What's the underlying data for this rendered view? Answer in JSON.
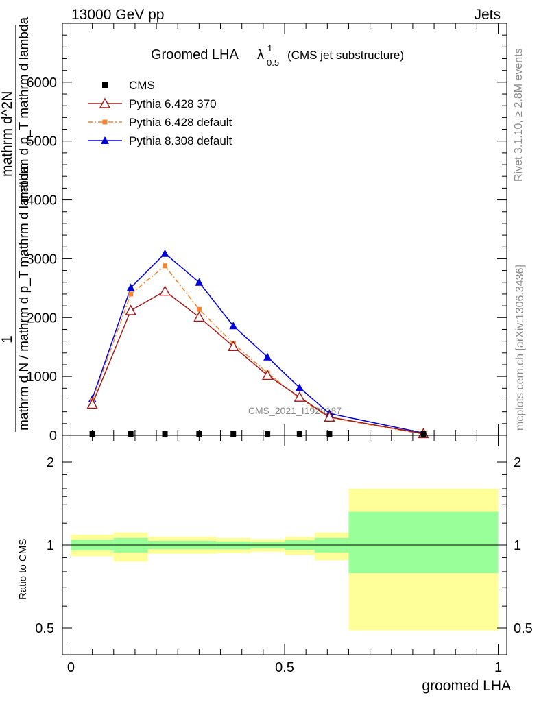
{
  "header": {
    "left": "13000 GeV pp",
    "right": "Jets"
  },
  "side_labels": {
    "rivet": "Rivet 3.1.10, ≥ 2.8M events",
    "site": "mcplots.cern.ch [arXiv:1306.3436]"
  },
  "watermark": "CMS_2021_I1920187",
  "title": {
    "main": "Groomed LHA",
    "lambda": "λ",
    "sup": "1",
    "sub": "0.5",
    "note": "(CMS jet substructure)"
  },
  "y_label_lines": [
    "1",
    "mathrm d N / mathrm d p_T mathrm d lambda",
    "mathrm d^2N",
    "mathrm d p_T mathrm d lambda"
  ],
  "ratio_ylabel": "Ratio to CMS",
  "x_label": "groomed LHA",
  "colors": {
    "cms": "#000000",
    "p6_370": "#a01a1a",
    "p6_default": "#f5842c",
    "p8_default": "#0000d8",
    "band_inner": "#99ff99",
    "band_outer": "#ffff99"
  },
  "chart_data": [
    {
      "type": "line",
      "xlim": [
        -0.02,
        1.02
      ],
      "ylim": [
        0,
        7000
      ],
      "y_ticks": [
        {
          "v": 0,
          "label": "0"
        },
        {
          "v": 1000,
          "label": "1000"
        },
        {
          "v": 2000,
          "label": "2000"
        },
        {
          "v": 3000,
          "label": "3000"
        },
        {
          "v": 4000,
          "label": "4000"
        },
        {
          "v": 5000,
          "label": "5000"
        },
        {
          "v": 6000,
          "label": "6000"
        }
      ],
      "bin_edges": [
        0,
        0.1,
        0.18,
        0.34,
        0.42,
        0.5,
        0.57,
        0.65,
        1.0
      ],
      "series": [
        {
          "name": "CMS",
          "marker": "square",
          "x": [
            0.05,
            0.14,
            0.22,
            0.3,
            0.38,
            0.46,
            0.535,
            0.605,
            0.825
          ],
          "y": [
            2,
            2,
            2,
            2,
            2,
            2,
            2,
            2,
            0
          ]
        },
        {
          "name": "Pythia 6.428 370",
          "marker": "open-triangle",
          "x": [
            0.05,
            0.14,
            0.22,
            0.3,
            0.38,
            0.46,
            0.535,
            0.605,
            0.825
          ],
          "y": [
            530,
            2120,
            2450,
            2010,
            1510,
            1020,
            650,
            310,
            30
          ]
        },
        {
          "name": "Pythia 6.428 default",
          "marker": "square",
          "dash": true,
          "x": [
            0.05,
            0.14,
            0.22,
            0.3,
            0.38,
            0.46,
            0.535,
            0.605,
            0.825
          ],
          "y": [
            590,
            2400,
            2880,
            2140,
            1560,
            1060,
            630,
            300,
            20
          ]
        },
        {
          "name": "Pythia 8.308 default",
          "marker": "triangle",
          "x": [
            0.05,
            0.14,
            0.22,
            0.3,
            0.38,
            0.46,
            0.535,
            0.605,
            0.825
          ],
          "y": [
            620,
            2510,
            3090,
            2600,
            1860,
            1330,
            810,
            370,
            40
          ]
        }
      ]
    },
    {
      "type": "area",
      "xlim": [
        -0.02,
        1.02
      ],
      "y_ticks": [
        {
          "v": 0.5,
          "label": "0.5"
        },
        {
          "v": 1,
          "label": "1"
        },
        {
          "v": 2,
          "label": "2"
        }
      ],
      "x_ticks": [
        {
          "v": 0,
          "label": "0"
        },
        {
          "v": 0.5,
          "label": "0.5"
        },
        {
          "v": 1,
          "label": "1"
        }
      ],
      "bands": [
        {
          "x0": 0.0,
          "x1": 0.1,
          "inner": [
            0.955,
            1.045
          ],
          "outer": [
            0.91,
            1.09
          ]
        },
        {
          "x0": 0.1,
          "x1": 0.18,
          "inner": [
            0.94,
            1.06
          ],
          "outer": [
            0.87,
            1.11
          ]
        },
        {
          "x0": 0.18,
          "x1": 0.34,
          "inner": [
            0.965,
            1.035
          ],
          "outer": [
            0.93,
            1.07
          ]
        },
        {
          "x0": 0.34,
          "x1": 0.42,
          "inner": [
            0.965,
            1.03
          ],
          "outer": [
            0.935,
            1.06
          ]
        },
        {
          "x0": 0.42,
          "x1": 0.5,
          "inner": [
            0.97,
            1.025
          ],
          "outer": [
            0.945,
            1.05
          ]
        },
        {
          "x0": 0.5,
          "x1": 0.57,
          "inner": [
            0.96,
            1.04
          ],
          "outer": [
            0.92,
            1.07
          ]
        },
        {
          "x0": 0.57,
          "x1": 0.65,
          "inner": [
            0.94,
            1.06
          ],
          "outer": [
            0.88,
            1.11
          ]
        },
        {
          "x0": 0.65,
          "x1": 1.0,
          "inner": [
            0.79,
            1.32
          ],
          "outer": [
            0.49,
            1.6
          ]
        }
      ]
    }
  ]
}
